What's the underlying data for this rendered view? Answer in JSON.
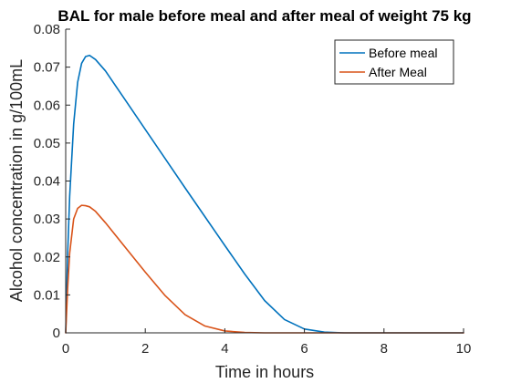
{
  "chart_data": {
    "type": "line",
    "title": "BAL for male before meal and after meal of weight 75 kg",
    "xlabel": "Time in hours",
    "ylabel": "Alcohol concentration in g/100mL",
    "xlim": [
      0,
      10
    ],
    "ylim": [
      0,
      0.08
    ],
    "x_ticks": [
      "0",
      "2",
      "4",
      "6",
      "8",
      "10"
    ],
    "y_ticks": [
      "0",
      "0.01",
      "0.02",
      "0.03",
      "0.04",
      "0.05",
      "0.06",
      "0.07",
      "0.08"
    ],
    "grid": false,
    "legend_position": "top-right",
    "x": [
      0,
      0.05,
      0.1,
      0.2,
      0.3,
      0.4,
      0.5,
      0.6,
      0.75,
      1.0,
      1.5,
      2.0,
      2.5,
      3.0,
      3.5,
      4.0,
      4.5,
      5.0,
      5.5,
      6.0,
      6.5,
      7.0,
      7.5,
      8.0,
      9.0,
      10.0
    ],
    "series": [
      {
        "name": "Before meal",
        "color": "#0072BD",
        "values": [
          0,
          0.021,
          0.036,
          0.055,
          0.066,
          0.071,
          0.0728,
          0.0731,
          0.072,
          0.069,
          0.0613,
          0.0536,
          0.0459,
          0.0382,
          0.0306,
          0.023,
          0.0155,
          0.0085,
          0.0035,
          0.001,
          0.0002,
          0.0,
          0.0,
          0.0,
          0.0,
          0.0
        ]
      },
      {
        "name": "After Meal",
        "color": "#D95319",
        "values": [
          0,
          0.012,
          0.021,
          0.03,
          0.0328,
          0.0336,
          0.0335,
          0.0332,
          0.032,
          0.029,
          0.0225,
          0.016,
          0.0098,
          0.0048,
          0.0018,
          0.0005,
          0.0001,
          0.0,
          0.0,
          0.0,
          0.0,
          0.0,
          0.0,
          0.0,
          0.0,
          0.0
        ]
      }
    ]
  }
}
